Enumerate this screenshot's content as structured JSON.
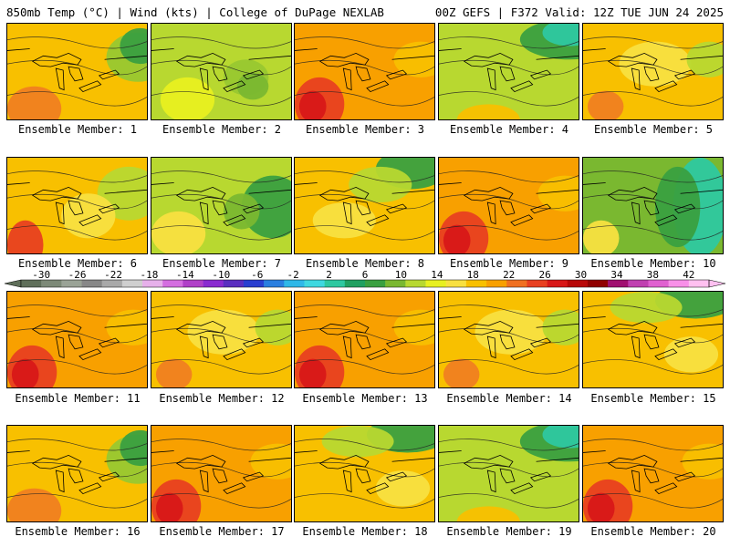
{
  "header": {
    "left": "850mb Temp (°C) | Wind (kts) | College of DuPage NEXLAB",
    "right": "00Z GEFS | F372 Valid: 12Z TUE JUN 24 2025"
  },
  "panels": [
    {
      "label": "Ensemble Member: 1",
      "style": "green-ne"
    },
    {
      "label": "Ensemble Member: 2",
      "style": "lime"
    },
    {
      "label": "Ensemble Member: 3",
      "style": "orange-red"
    },
    {
      "label": "Ensemble Member: 4",
      "style": "teal-n"
    },
    {
      "label": "Ensemble Member: 5",
      "style": "yellow-orange"
    },
    {
      "label": "Ensemble Member: 6",
      "style": "orange-sw"
    },
    {
      "label": "Ensemble Member: 7",
      "style": "green-e"
    },
    {
      "label": "Ensemble Member: 8",
      "style": "yellow-green-n"
    },
    {
      "label": "Ensemble Member: 9",
      "style": "orange-red"
    },
    {
      "label": "Ensemble Member: 10",
      "style": "green-e2"
    },
    {
      "label": "Ensemble Member: 11",
      "style": "orange-red"
    },
    {
      "label": "Ensemble Member: 12",
      "style": "yellow-orange"
    },
    {
      "label": "Ensemble Member: 13",
      "style": "orange-red"
    },
    {
      "label": "Ensemble Member: 14",
      "style": "yellow-orange"
    },
    {
      "label": "Ensemble Member: 15",
      "style": "green-n"
    },
    {
      "label": "Ensemble Member: 16",
      "style": "green-ne"
    },
    {
      "label": "Ensemble Member: 17",
      "style": "orange-red"
    },
    {
      "label": "Ensemble Member: 18",
      "style": "green-n"
    },
    {
      "label": "Ensemble Member: 19",
      "style": "teal-n"
    },
    {
      "label": "Ensemble Member: 20",
      "style": "orange-red"
    }
  ],
  "colorbar": {
    "labels": [
      "-30",
      "-26",
      "-22",
      "-18",
      "-14",
      "-10",
      "-6",
      "-2",
      "2",
      "6",
      "10",
      "14",
      "18",
      "22",
      "26",
      "30",
      "34",
      "38",
      "42"
    ],
    "colors": [
      "#5f6f5a",
      "#7d8a78",
      "#9aa396",
      "#888888",
      "#a9a9a9",
      "#cfcfcf",
      "#e6b0ea",
      "#d46ee0",
      "#b040c8",
      "#8a2bd0",
      "#5a2fc0",
      "#2a3fd0",
      "#2a7fe0",
      "#2fb8e8",
      "#3fd8e0",
      "#2ec8a0",
      "#20a060",
      "#3aa040",
      "#7ab830",
      "#b8d830",
      "#e8f020",
      "#f8e040",
      "#f8c000",
      "#f8a000",
      "#f07020",
      "#e84020",
      "#d81818",
      "#b80808",
      "#900000",
      "#a01070",
      "#c040b0",
      "#e060d0",
      "#f890e8",
      "#ffc0f0"
    ]
  }
}
